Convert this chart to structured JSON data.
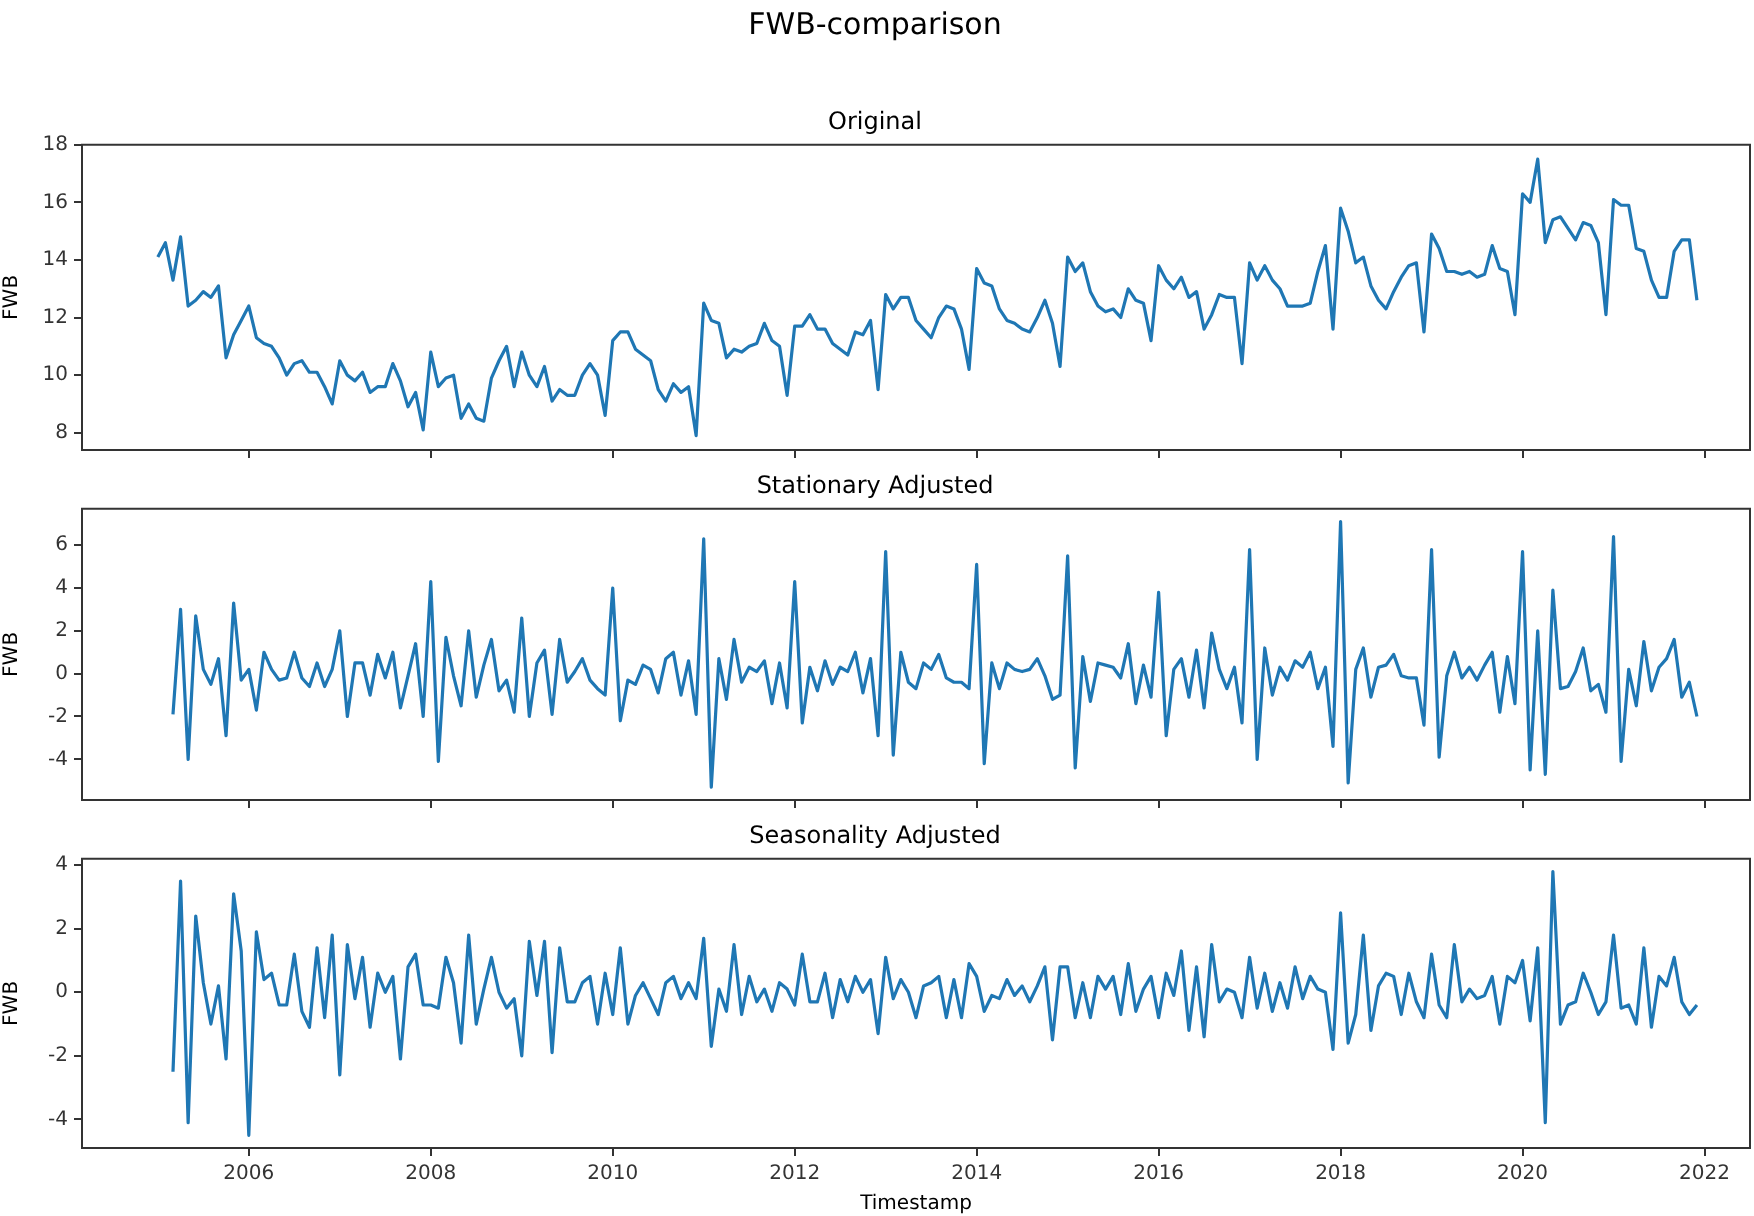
{
  "chart_data": [
    {
      "type": "line",
      "title": "FWB-comparison",
      "subtitle": "Original",
      "ylabel": "FWB",
      "tick_labels": "y",
      "xlim": [
        "2004-03",
        "2022-07"
      ],
      "xticks": [
        "2006",
        "2008",
        "2010",
        "2012",
        "2014",
        "2016",
        "2018",
        "2020",
        "2022"
      ],
      "ylim": [
        7.4,
        18
      ],
      "yticks": [
        8,
        10,
        12,
        14,
        16,
        18
      ],
      "series": [
        {
          "color": "#1f77b4",
          "x": [
            "2005-01",
            "2005-02",
            "2005-03",
            "2005-04",
            "2005-05",
            "2005-06",
            "2005-07",
            "2005-08",
            "2005-09",
            "2005-10",
            "2005-11",
            "2005-12",
            "2006-01",
            "2006-02",
            "2006-03",
            "2006-04",
            "2006-05",
            "2006-06",
            "2006-07",
            "2006-08",
            "2006-09",
            "2006-10",
            "2006-11",
            "2006-12",
            "2007-01",
            "2007-02",
            "2007-03",
            "2007-04",
            "2007-05",
            "2007-06",
            "2007-07",
            "2007-08",
            "2007-09",
            "2007-10",
            "2007-11",
            "2007-12",
            "2008-01",
            "2008-02",
            "2008-03",
            "2008-04",
            "2008-05",
            "2008-06",
            "2008-07",
            "2008-08",
            "2008-09",
            "2008-10",
            "2008-11",
            "2008-12",
            "2009-01",
            "2009-02",
            "2009-03",
            "2009-04",
            "2009-05",
            "2009-06",
            "2009-07",
            "2009-08",
            "2009-09",
            "2009-10",
            "2009-11",
            "2009-12",
            "2010-01",
            "2010-02",
            "2010-03",
            "2010-04",
            "2010-05",
            "2010-06",
            "2010-07",
            "2010-08",
            "2010-09",
            "2010-10",
            "2010-11",
            "2010-12",
            "2011-01",
            "2011-02",
            "2011-03",
            "2011-04",
            "2011-05",
            "2011-06",
            "2011-07",
            "2011-08",
            "2011-09",
            "2011-10",
            "2011-11",
            "2011-12",
            "2012-01",
            "2012-02",
            "2012-03",
            "2012-04",
            "2012-05",
            "2012-06",
            "2012-07",
            "2012-08",
            "2012-09",
            "2012-10",
            "2012-11",
            "2012-12",
            "2013-01",
            "2013-02",
            "2013-03",
            "2013-04",
            "2013-05",
            "2013-06",
            "2013-07",
            "2013-08",
            "2013-09",
            "2013-10",
            "2013-11",
            "2013-12",
            "2014-01",
            "2014-02",
            "2014-03",
            "2014-04",
            "2014-05",
            "2014-06",
            "2014-07",
            "2014-08",
            "2014-09",
            "2014-10",
            "2014-11",
            "2014-12",
            "2015-01",
            "2015-02",
            "2015-03",
            "2015-04",
            "2015-05",
            "2015-06",
            "2015-07",
            "2015-08",
            "2015-09",
            "2015-10",
            "2015-11",
            "2015-12",
            "2016-01",
            "2016-02",
            "2016-03",
            "2016-04",
            "2016-05",
            "2016-06",
            "2016-07",
            "2016-08",
            "2016-09",
            "2016-10",
            "2016-11",
            "2016-12",
            "2017-01",
            "2017-02",
            "2017-03",
            "2017-04",
            "2017-05",
            "2017-06",
            "2017-07",
            "2017-08",
            "2017-09",
            "2017-10",
            "2017-11",
            "2017-12",
            "2018-01",
            "2018-02",
            "2018-03",
            "2018-04",
            "2018-05",
            "2018-06",
            "2018-07",
            "2018-08",
            "2018-09",
            "2018-10",
            "2018-11",
            "2018-12",
            "2019-01",
            "2019-02",
            "2019-03",
            "2019-04",
            "2019-05",
            "2019-06",
            "2019-07",
            "2019-08",
            "2019-09",
            "2019-10",
            "2019-11",
            "2019-12",
            "2020-01",
            "2020-02",
            "2020-03",
            "2020-04",
            "2020-05",
            "2020-06",
            "2020-07",
            "2020-08",
            "2020-09",
            "2020-10",
            "2020-11",
            "2020-12",
            "2021-01",
            "2021-02",
            "2021-03",
            "2021-04",
            "2021-05",
            "2021-06",
            "2021-07",
            "2021-08",
            "2021-09",
            "2021-10",
            "2021-11",
            "2021-12"
          ],
          "values": [
            14.1,
            14.6,
            13.3,
            14.8,
            12.4,
            12.6,
            12.9,
            12.7,
            13.1,
            10.6,
            11.4,
            11.9,
            12.4,
            11.3,
            11.1,
            11.0,
            10.6,
            10.0,
            10.4,
            10.5,
            10.1,
            10.1,
            9.6,
            9.0,
            10.5,
            10.0,
            9.8,
            10.1,
            9.4,
            9.6,
            9.6,
            10.4,
            9.8,
            8.9,
            9.4,
            8.1,
            10.8,
            9.6,
            9.9,
            10.0,
            8.5,
            9.0,
            8.5,
            8.4,
            9.9,
            10.5,
            11.0,
            9.6,
            10.8,
            10.0,
            9.6,
            10.3,
            9.1,
            9.5,
            9.3,
            9.3,
            10.0,
            10.4,
            10.0,
            8.6,
            11.2,
            11.5,
            11.5,
            10.9,
            10.7,
            10.5,
            9.5,
            9.1,
            9.7,
            9.4,
            9.6,
            7.9,
            12.5,
            11.9,
            11.8,
            10.6,
            10.9,
            10.8,
            11.0,
            11.1,
            11.8,
            11.2,
            11.0,
            9.3,
            11.7,
            11.7,
            12.1,
            11.6,
            11.6,
            11.1,
            10.9,
            10.7,
            11.5,
            11.4,
            11.9,
            9.5,
            12.8,
            12.3,
            12.7,
            12.7,
            11.9,
            11.6,
            11.3,
            12.0,
            12.4,
            12.3,
            11.6,
            10.2,
            13.7,
            13.2,
            13.1,
            12.3,
            11.9,
            11.8,
            11.6,
            11.5,
            12.0,
            12.6,
            11.8,
            10.3,
            14.1,
            13.6,
            13.9,
            12.9,
            12.4,
            12.2,
            12.3,
            12.0,
            13.0,
            12.6,
            12.5,
            11.2,
            13.8,
            13.3,
            13.0,
            13.4,
            12.7,
            12.9,
            11.6,
            12.1,
            12.8,
            12.7,
            12.7,
            10.4,
            13.9,
            13.3,
            13.8,
            13.3,
            13.0,
            12.4,
            12.4,
            12.4,
            12.5,
            13.6,
            14.5,
            11.6,
            15.8,
            15.0,
            13.9,
            14.1,
            13.1,
            12.6,
            12.3,
            12.9,
            13.4,
            13.8,
            13.9,
            11.5,
            14.9,
            14.4,
            13.6,
            13.6,
            13.5,
            13.6,
            13.4,
            13.5,
            14.5,
            13.7,
            13.6,
            12.1,
            16.3,
            16.0,
            17.5,
            14.6,
            15.4,
            15.5,
            15.1,
            14.7,
            15.3,
            15.2,
            14.6,
            12.1,
            16.1,
            15.9,
            15.9,
            14.4,
            14.3,
            13.3,
            12.7,
            12.7,
            14.3,
            14.7,
            14.7,
            12.6
          ]
        }
      ]
    },
    {
      "type": "line",
      "title": "Stationary Adjusted",
      "ylabel": "FWB",
      "tick_labels": "y",
      "xlim": [
        "2004-03",
        "2022-07"
      ],
      "xticks": [
        "2006",
        "2008",
        "2010",
        "2012",
        "2014",
        "2016",
        "2018",
        "2020",
        "2022"
      ],
      "ylim": [
        -5.9,
        7.7
      ],
      "yticks": [
        -4,
        -2,
        0,
        2,
        4,
        6
      ],
      "series": [
        {
          "color": "#1f77b4",
          "x": [
            "2005-03",
            "2005-04",
            "2005-05",
            "2005-06",
            "2005-07",
            "2005-08",
            "2005-09",
            "2005-10",
            "2005-11",
            "2005-12",
            "2006-01",
            "2006-02",
            "2006-03",
            "2006-04",
            "2006-05",
            "2006-06",
            "2006-07",
            "2006-08",
            "2006-09",
            "2006-10",
            "2006-11",
            "2006-12",
            "2007-01",
            "2007-02",
            "2007-03",
            "2007-04",
            "2007-05",
            "2007-06",
            "2007-07",
            "2007-08",
            "2007-09",
            "2007-10",
            "2007-11",
            "2007-12",
            "2008-01",
            "2008-02",
            "2008-03",
            "2008-04",
            "2008-05",
            "2008-06",
            "2008-07",
            "2008-08",
            "2008-09",
            "2008-10",
            "2008-11",
            "2008-12",
            "2009-01",
            "2009-02",
            "2009-03",
            "2009-04",
            "2009-05",
            "2009-06",
            "2009-07",
            "2009-08",
            "2009-09",
            "2009-10",
            "2009-11",
            "2009-12",
            "2010-01",
            "2010-02",
            "2010-03",
            "2010-04",
            "2010-05",
            "2010-06",
            "2010-07",
            "2010-08",
            "2010-09",
            "2010-10",
            "2010-11",
            "2010-12",
            "2011-01",
            "2011-02",
            "2011-03",
            "2011-04",
            "2011-05",
            "2011-06",
            "2011-07",
            "2011-08",
            "2011-09",
            "2011-10",
            "2011-11",
            "2011-12",
            "2012-01",
            "2012-02",
            "2012-03",
            "2012-04",
            "2012-05",
            "2012-06",
            "2012-07",
            "2012-08",
            "2012-09",
            "2012-10",
            "2012-11",
            "2012-12",
            "2013-01",
            "2013-02",
            "2013-03",
            "2013-04",
            "2013-05",
            "2013-06",
            "2013-07",
            "2013-08",
            "2013-09",
            "2013-10",
            "2013-11",
            "2013-12",
            "2014-01",
            "2014-02",
            "2014-03",
            "2014-04",
            "2014-05",
            "2014-06",
            "2014-07",
            "2014-08",
            "2014-09",
            "2014-10",
            "2014-11",
            "2014-12",
            "2015-01",
            "2015-02",
            "2015-03",
            "2015-04",
            "2015-05",
            "2015-06",
            "2015-07",
            "2015-08",
            "2015-09",
            "2015-10",
            "2015-11",
            "2015-12",
            "2016-01",
            "2016-02",
            "2016-03",
            "2016-04",
            "2016-05",
            "2016-06",
            "2016-07",
            "2016-08",
            "2016-09",
            "2016-10",
            "2016-11",
            "2016-12",
            "2017-01",
            "2017-02",
            "2017-03",
            "2017-04",
            "2017-05",
            "2017-06",
            "2017-07",
            "2017-08",
            "2017-09",
            "2017-10",
            "2017-11",
            "2017-12",
            "2018-01",
            "2018-02",
            "2018-03",
            "2018-04",
            "2018-05",
            "2018-06",
            "2018-07",
            "2018-08",
            "2018-09",
            "2018-10",
            "2018-11",
            "2018-12",
            "2019-01",
            "2019-02",
            "2019-03",
            "2019-04",
            "2019-05",
            "2019-06",
            "2019-07",
            "2019-08",
            "2019-09",
            "2019-10",
            "2019-11",
            "2019-12",
            "2020-01",
            "2020-02",
            "2020-03",
            "2020-04",
            "2020-05",
            "2020-06",
            "2020-07",
            "2020-08",
            "2020-09",
            "2020-10",
            "2020-11",
            "2020-12",
            "2021-01",
            "2021-02",
            "2021-03",
            "2021-04",
            "2021-05",
            "2021-06",
            "2021-07",
            "2021-08",
            "2021-09",
            "2021-10",
            "2021-11",
            "2021-12"
          ],
          "values": [
            -1.9,
            3.0,
            -4.0,
            2.7,
            0.2,
            -0.5,
            0.7,
            -2.9,
            3.3,
            -0.3,
            0.2,
            -1.7,
            1.0,
            0.2,
            -0.3,
            -0.2,
            1.0,
            -0.2,
            -0.6,
            0.5,
            -0.6,
            0.2,
            2.0,
            -2.0,
            0.5,
            0.5,
            -1.0,
            0.9,
            -0.2,
            1.0,
            -1.6,
            -0.1,
            1.4,
            -2.0,
            4.3,
            -4.1,
            1.7,
            -0.1,
            -1.5,
            2.0,
            -1.1,
            0.4,
            1.6,
            -0.8,
            -0.3,
            -1.8,
            2.6,
            -2.0,
            0.5,
            1.1,
            -1.9,
            1.6,
            -0.4,
            0.1,
            0.7,
            -0.3,
            -0.7,
            -1.0,
            4.0,
            -2.2,
            -0.3,
            -0.5,
            0.4,
            0.2,
            -0.9,
            0.7,
            1.0,
            -1.0,
            0.6,
            -1.9,
            6.3,
            -5.3,
            0.7,
            -1.2,
            1.6,
            -0.4,
            0.3,
            0.1,
            0.6,
            -1.4,
            0.5,
            -1.6,
            4.3,
            -2.3,
            0.3,
            -0.8,
            0.6,
            -0.5,
            0.3,
            0.1,
            1.0,
            -0.9,
            0.7,
            -2.9,
            5.7,
            -3.8,
            1.0,
            -0.4,
            -0.7,
            0.5,
            0.2,
            0.9,
            -0.2,
            -0.4,
            -0.4,
            -0.7,
            5.1,
            -4.2,
            0.5,
            -0.7,
            0.5,
            0.2,
            0.1,
            0.2,
            0.7,
            -0.1,
            -1.2,
            -1.0,
            5.5,
            -4.4,
            0.8,
            -1.3,
            0.5,
            0.4,
            0.3,
            -0.2,
            1.4,
            -1.4,
            0.4,
            -1.1,
            3.8,
            -2.9,
            0.2,
            0.7,
            -1.1,
            1.1,
            -1.6,
            1.9,
            0.2,
            -0.7,
            0.3,
            -2.3,
            5.8,
            -4.0,
            1.2,
            -1.0,
            0.3,
            -0.3,
            0.6,
            0.3,
            1.0,
            -0.7,
            0.3,
            -3.4,
            7.1,
            -5.1,
            0.2,
            1.2,
            -1.1,
            0.3,
            0.4,
            0.9,
            -0.1,
            -0.2,
            -0.2,
            -2.4,
            5.8,
            -3.9,
            -0.1,
            1.0,
            -0.2,
            0.3,
            -0.3,
            0.4,
            1.0,
            -1.8,
            0.8,
            -1.4,
            5.7,
            -4.5,
            2.0,
            -4.7,
            3.9,
            -0.7,
            -0.6,
            0.1,
            1.2,
            -0.8,
            -0.5,
            -1.8,
            6.4,
            -4.1,
            0.2,
            -1.5,
            1.5,
            -0.8,
            0.3,
            0.7,
            1.6,
            -1.1,
            -0.4,
            -2.0
          ]
        }
      ]
    },
    {
      "type": "line",
      "title": "Seasonality Adjusted",
      "xlabel": "Timestamp",
      "ylabel": "FWB",
      "xlim": [
        "2004-03",
        "2022-07"
      ],
      "xticks": [
        "2006",
        "2008",
        "2010",
        "2012",
        "2014",
        "2016",
        "2018",
        "2020",
        "2022"
      ],
      "ylim": [
        -4.9,
        4.2
      ],
      "yticks": [
        -4,
        -2,
        0,
        2,
        4
      ],
      "series": [
        {
          "color": "#1f77b4",
          "x": [
            "2005-03",
            "2005-04",
            "2005-05",
            "2005-06",
            "2005-07",
            "2005-08",
            "2005-09",
            "2005-10",
            "2005-11",
            "2005-12",
            "2006-01",
            "2006-02",
            "2006-03",
            "2006-04",
            "2006-05",
            "2006-06",
            "2006-07",
            "2006-08",
            "2006-09",
            "2006-10",
            "2006-11",
            "2006-12",
            "2007-01",
            "2007-02",
            "2007-03",
            "2007-04",
            "2007-05",
            "2007-06",
            "2007-07",
            "2007-08",
            "2007-09",
            "2007-10",
            "2007-11",
            "2007-12",
            "2008-01",
            "2008-02",
            "2008-03",
            "2008-04",
            "2008-05",
            "2008-06",
            "2008-07",
            "2008-08",
            "2008-09",
            "2008-10",
            "2008-11",
            "2008-12",
            "2009-01",
            "2009-02",
            "2009-03",
            "2009-04",
            "2009-05",
            "2009-06",
            "2009-07",
            "2009-08",
            "2009-09",
            "2009-10",
            "2009-11",
            "2009-12",
            "2010-01",
            "2010-02",
            "2010-03",
            "2010-04",
            "2010-05",
            "2010-06",
            "2010-07",
            "2010-08",
            "2010-09",
            "2010-10",
            "2010-11",
            "2010-12",
            "2011-01",
            "2011-02",
            "2011-03",
            "2011-04",
            "2011-05",
            "2011-06",
            "2011-07",
            "2011-08",
            "2011-09",
            "2011-10",
            "2011-11",
            "2011-12",
            "2012-01",
            "2012-02",
            "2012-03",
            "2012-04",
            "2012-05",
            "2012-06",
            "2012-07",
            "2012-08",
            "2012-09",
            "2012-10",
            "2012-11",
            "2012-12",
            "2013-01",
            "2013-02",
            "2013-03",
            "2013-04",
            "2013-05",
            "2013-06",
            "2013-07",
            "2013-08",
            "2013-09",
            "2013-10",
            "2013-11",
            "2013-12",
            "2014-01",
            "2014-02",
            "2014-03",
            "2014-04",
            "2014-05",
            "2014-06",
            "2014-07",
            "2014-08",
            "2014-09",
            "2014-10",
            "2014-11",
            "2014-12",
            "2015-01",
            "2015-02",
            "2015-03",
            "2015-04",
            "2015-05",
            "2015-06",
            "2015-07",
            "2015-08",
            "2015-09",
            "2015-10",
            "2015-11",
            "2015-12",
            "2016-01",
            "2016-02",
            "2016-03",
            "2016-04",
            "2016-05",
            "2016-06",
            "2016-07",
            "2016-08",
            "2016-09",
            "2016-10",
            "2016-11",
            "2016-12",
            "2017-01",
            "2017-02",
            "2017-03",
            "2017-04",
            "2017-05",
            "2017-06",
            "2017-07",
            "2017-08",
            "2017-09",
            "2017-10",
            "2017-11",
            "2017-12",
            "2018-01",
            "2018-02",
            "2018-03",
            "2018-04",
            "2018-05",
            "2018-06",
            "2018-07",
            "2018-08",
            "2018-09",
            "2018-10",
            "2018-11",
            "2018-12",
            "2019-01",
            "2019-02",
            "2019-03",
            "2019-04",
            "2019-05",
            "2019-06",
            "2019-07",
            "2019-08",
            "2019-09",
            "2019-10",
            "2019-11",
            "2019-12",
            "2020-01",
            "2020-02",
            "2020-03",
            "2020-04",
            "2020-05",
            "2020-06",
            "2020-07",
            "2020-08",
            "2020-09",
            "2020-10",
            "2020-11",
            "2020-12",
            "2021-01",
            "2021-02",
            "2021-03",
            "2021-04",
            "2021-05",
            "2021-06",
            "2021-07",
            "2021-08",
            "2021-09",
            "2021-10",
            "2021-11",
            "2021-12"
          ],
          "values": [
            -2.5,
            3.5,
            -4.1,
            2.4,
            0.3,
            -1.0,
            0.2,
            -2.1,
            3.1,
            1.3,
            -4.5,
            1.9,
            0.4,
            0.6,
            -0.4,
            -0.4,
            1.2,
            -0.6,
            -1.1,
            1.4,
            -0.8,
            1.8,
            -2.6,
            1.5,
            -0.2,
            1.1,
            -1.1,
            0.6,
            0.0,
            0.5,
            -2.1,
            0.8,
            1.2,
            -0.4,
            -0.4,
            -0.5,
            1.1,
            0.3,
            -1.6,
            1.8,
            -1.0,
            0.1,
            1.1,
            0.0,
            -0.5,
            -0.2,
            -2.0,
            1.6,
            -0.1,
            1.6,
            -1.9,
            1.4,
            -0.3,
            -0.3,
            0.3,
            0.5,
            -1.0,
            0.6,
            -0.7,
            1.4,
            -1.0,
            -0.1,
            0.3,
            -0.2,
            -0.7,
            0.3,
            0.5,
            -0.2,
            0.3,
            -0.2,
            1.7,
            -1.7,
            0.1,
            -0.6,
            1.5,
            -0.7,
            0.5,
            -0.3,
            0.1,
            -0.6,
            0.3,
            0.1,
            -0.4,
            1.2,
            -0.3,
            -0.3,
            0.6,
            -0.8,
            0.4,
            -0.3,
            0.5,
            0.0,
            0.4,
            -1.3,
            1.1,
            -0.2,
            0.4,
            0.0,
            -0.8,
            0.2,
            0.3,
            0.5,
            -0.8,
            0.4,
            -0.8,
            0.9,
            0.5,
            -0.6,
            -0.1,
            -0.2,
            0.4,
            -0.1,
            0.2,
            -0.3,
            0.2,
            0.8,
            -1.5,
            0.8,
            0.8,
            -0.8,
            0.3,
            -0.8,
            0.5,
            0.1,
            0.5,
            -0.7,
            0.9,
            -0.6,
            0.1,
            0.5,
            -0.8,
            0.6,
            -0.1,
            1.3,
            -1.2,
            0.8,
            -1.4,
            1.5,
            -0.3,
            0.1,
            0.0,
            -0.8,
            1.1,
            -0.5,
            0.6,
            -0.6,
            0.3,
            -0.5,
            0.8,
            -0.2,
            0.5,
            0.1,
            0.0,
            -1.8,
            2.5,
            -1.6,
            -0.7,
            1.8,
            -1.2,
            0.2,
            0.6,
            0.5,
            -0.7,
            0.6,
            -0.3,
            -0.8,
            1.2,
            -0.4,
            -0.8,
            1.5,
            -0.3,
            0.1,
            -0.2,
            -0.1,
            0.5,
            -1.0,
            0.5,
            0.3,
            1.0,
            -0.9,
            1.4,
            -4.1,
            3.8,
            -1.0,
            -0.4,
            -0.3,
            0.6,
            0.0,
            -0.7,
            -0.3,
            1.8,
            -0.5,
            -0.4,
            -1.0,
            1.4,
            -1.1,
            0.5,
            0.2,
            1.1,
            -0.3,
            -0.7,
            -0.4
          ]
        }
      ]
    }
  ]
}
